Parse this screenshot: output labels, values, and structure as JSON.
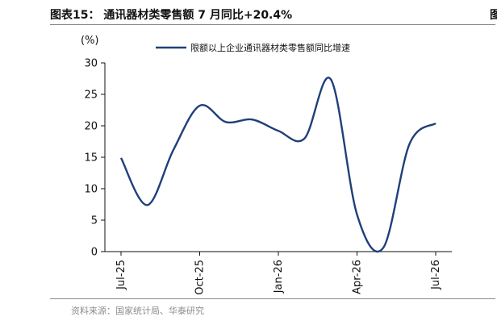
{
  "header": {
    "title": "图表15：  通讯器材类零售额 7 月同比+20.4%"
  },
  "footer": {
    "source": "资料来源：国家统计局、华泰研究"
  },
  "chart_data": {
    "type": "line",
    "title": "",
    "xlabel": "",
    "ylabel": "(%)",
    "ylim": [
      0,
      30
    ],
    "yticks": [
      0,
      5,
      10,
      15,
      20,
      25,
      30
    ],
    "xticks": [
      "Jul-25",
      "Oct-25",
      "Jan-26",
      "Apr-26",
      "Jul-26"
    ],
    "x": [
      "Jul-25",
      "Aug-25",
      "Sep-25",
      "Oct-25",
      "Nov-25",
      "Dec-25",
      "Jan-26",
      "Feb-26",
      "Mar-26",
      "Apr-26",
      "May-26",
      "Jun-26",
      "Jul-26"
    ],
    "grid": false,
    "legend": "top",
    "series": [
      {
        "name": "限额以上企业通讯器材类零售额同比增速",
        "color": "#1f3f7a",
        "values": [
          14.9,
          7.4,
          16.2,
          23.2,
          20.6,
          21.0,
          19.2,
          18.0,
          27.4,
          5.9,
          0.6,
          17.1,
          20.4
        ]
      }
    ]
  }
}
